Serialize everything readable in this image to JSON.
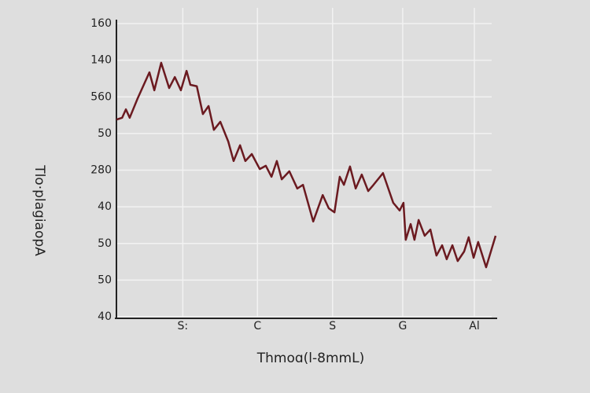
{
  "chart_data": {
    "type": "line",
    "x_label": "Thmoɑ(l-8mmL)",
    "y_label": "Tlo·plagiaopA",
    "xlim": [
      0,
      10
    ],
    "xticks": [
      {
        "value": 1.75,
        "label": "S:"
      },
      {
        "value": 3.72,
        "label": "C"
      },
      {
        "value": 5.7,
        "label": "S"
      },
      {
        "value": 7.55,
        "label": "G"
      },
      {
        "value": 9.44,
        "label": "Al"
      }
    ],
    "ylim": [
      0,
      8
    ],
    "yticks": [
      {
        "value": 0,
        "label": "40"
      },
      {
        "value": 1,
        "label": "50"
      },
      {
        "value": 2,
        "label": "50"
      },
      {
        "value": 3,
        "label": "40"
      },
      {
        "value": 4,
        "label": "280"
      },
      {
        "value": 5,
        "label": "50"
      },
      {
        "value": 6,
        "label": "560"
      },
      {
        "value": 7,
        "label": "140"
      },
      {
        "value": 8,
        "label": "160"
      }
    ],
    "grid": true,
    "series": [
      {
        "color": "#6b1a20",
        "x": [
          0,
          0.15,
          0.25,
          0.35,
          0.56,
          0.87,
          1.0,
          1.18,
          1.39,
          1.54,
          1.7,
          1.85,
          1.95,
          2.12,
          2.28,
          2.43,
          2.57,
          2.74,
          2.95,
          3.09,
          3.26,
          3.4,
          3.57,
          3.78,
          3.94,
          4.09,
          4.23,
          4.36,
          4.56,
          4.77,
          4.92,
          5.19,
          5.44,
          5.6,
          5.75,
          5.89,
          6.0,
          6.16,
          6.31,
          6.47,
          6.64,
          6.78,
          7.03,
          7.3,
          7.47,
          7.57,
          7.63,
          7.76,
          7.86,
          7.97,
          8.13,
          8.28,
          8.44,
          8.59,
          8.71,
          8.86,
          9.0,
          9.17,
          9.29,
          9.42,
          9.54,
          9.75,
          10.0
        ],
        "values": [
          5.38,
          5.43,
          5.66,
          5.43,
          5.96,
          6.67,
          6.18,
          6.93,
          6.24,
          6.54,
          6.18,
          6.71,
          6.33,
          6.29,
          5.53,
          5.75,
          5.1,
          5.32,
          4.78,
          4.25,
          4.68,
          4.25,
          4.44,
          4.03,
          4.12,
          3.82,
          4.25,
          3.75,
          3.97,
          3.5,
          3.6,
          2.6,
          3.32,
          2.96,
          2.85,
          3.82,
          3.6,
          4.1,
          3.5,
          3.88,
          3.43,
          3.6,
          3.92,
          3.11,
          2.9,
          3.11,
          2.1,
          2.53,
          2.1,
          2.64,
          2.21,
          2.38,
          1.67,
          1.95,
          1.57,
          1.95,
          1.52,
          1.78,
          2.17,
          1.61,
          2.04,
          1.35,
          2.21
        ]
      }
    ]
  }
}
